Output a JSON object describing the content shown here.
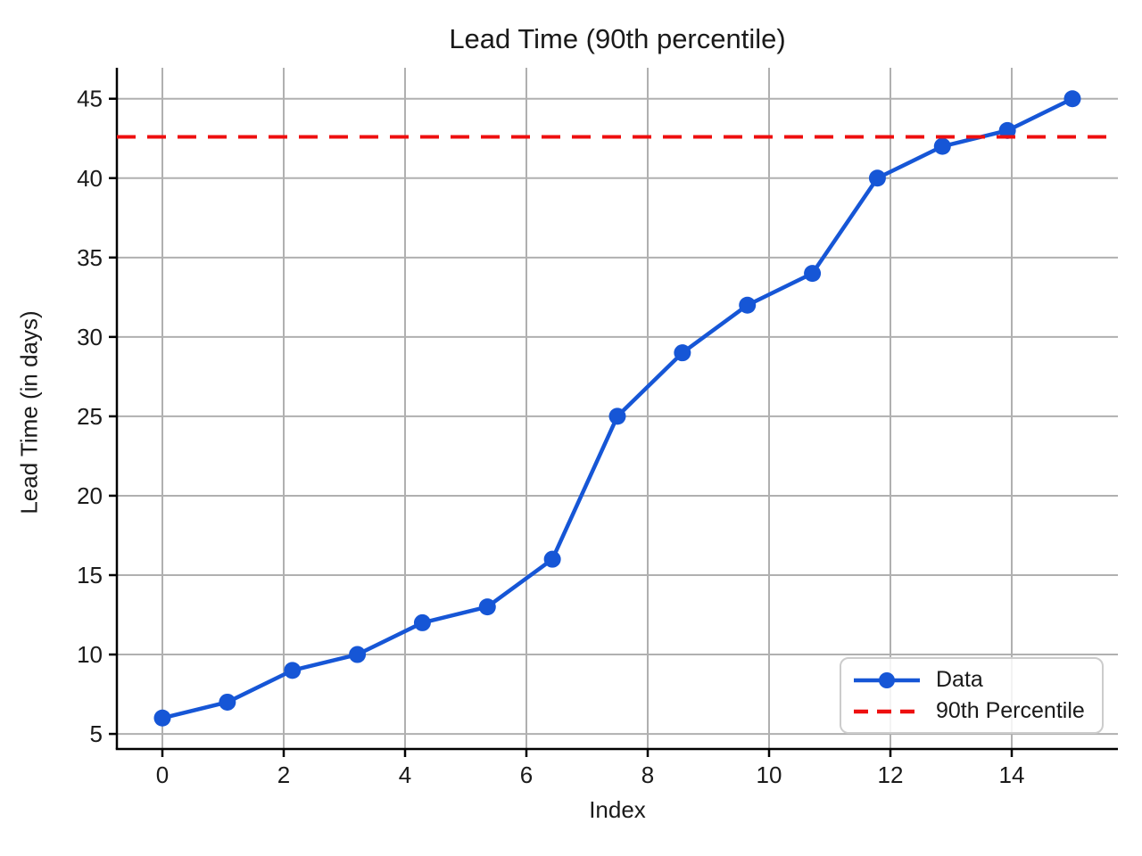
{
  "chart_data": {
    "type": "line",
    "title": "Lead Time (90th percentile)",
    "xlabel": "Index",
    "ylabel": "Lead Time (in days)",
    "x": [
      0,
      1.0714,
      2.1429,
      3.2143,
      4.2857,
      5.3571,
      6.4286,
      7.5,
      8.5714,
      9.6429,
      10.7143,
      11.7857,
      12.8571,
      13.9286,
      15
    ],
    "series": [
      {
        "name": "Data",
        "kind": "line-markers",
        "color": "#1656d6",
        "values": [
          6,
          7,
          9,
          10,
          12,
          13,
          16,
          25,
          29,
          32,
          34,
          40,
          42,
          43,
          45
        ]
      },
      {
        "name": "90th Percentile",
        "kind": "hline-dashed",
        "color": "#ee0f0f",
        "value": 42.6
      }
    ],
    "xlim": [
      -0.75,
      15.75
    ],
    "ylim": [
      4.05,
      46.95
    ],
    "x_ticks": [
      0,
      2,
      4,
      6,
      8,
      10,
      12,
      14
    ],
    "y_ticks": [
      5,
      10,
      15,
      20,
      25,
      30,
      35,
      40,
      45
    ],
    "grid": true,
    "grid_color": "#b0b0b0",
    "spine_color": "#000000",
    "legend_position": "lower right"
  }
}
